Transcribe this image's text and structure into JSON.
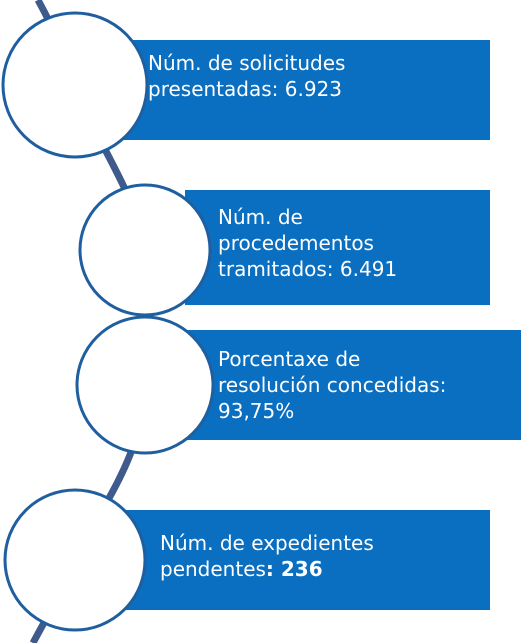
{
  "items": [
    {
      "lines": [
        "Núm. de solicitudes",
        "presentadas: 6.923"
      ]
    },
    {
      "lines": [
        "Núm. de",
        "procedementos",
        "tramitados: 6.491"
      ]
    },
    {
      "lines": [
        "Porcentaxe de",
        "resolución concedidas:",
        "93,75%"
      ]
    },
    {
      "lines": [
        "Núm. de expedientes",
        "pendentes"
      ],
      "emphasis": ": 236"
    }
  ]
}
